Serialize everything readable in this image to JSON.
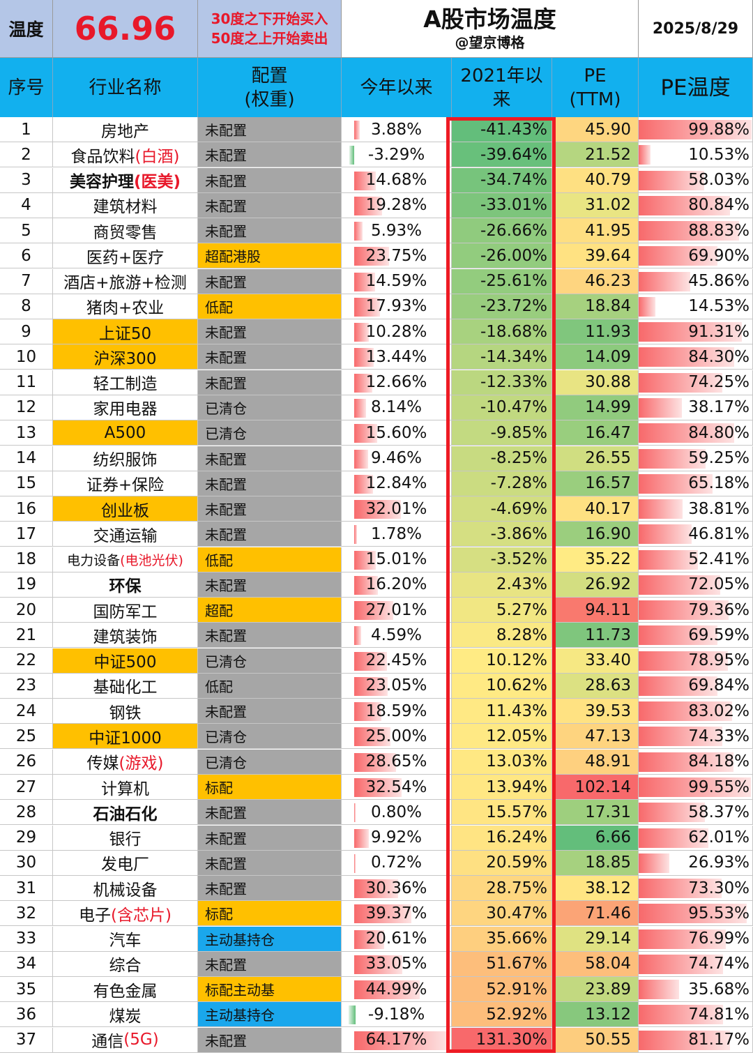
{
  "header": {
    "temp_label": "温度",
    "temp_value": "66.96",
    "rule_buy": "30度之下开始买入",
    "rule_sell": "50度之上开始卖出",
    "title": "A股市场温度",
    "subtitle": "@望京博格",
    "date": "2025/8/29"
  },
  "columns": {
    "seq": "序号",
    "name": "行业名称",
    "config_1": "配置",
    "config_2": "(权重)",
    "ytd": "今年以来",
    "since_2021_1": "2021年以",
    "since_2021_2": "来",
    "pe_1": "PE",
    "pe_2": "(TTM)",
    "pe_temp": "PE温度"
  },
  "colors": {
    "highlight": "#ffc000",
    "header_blue": "#12b0ee",
    "config_gray": "#a6a6a6",
    "config_blue": "#1aa7ec",
    "accent_red": "#e8182a",
    "box_red": "#ee1b24"
  },
  "rows": [
    {
      "seq": "1",
      "name": "房地产",
      "note": "",
      "cfg": "未配置",
      "cfg_type": "gray",
      "ytd": "3.88%",
      "ytd_v": 3.88,
      "since": "-41.43%",
      "since_v": -41.43,
      "pe": "45.90",
      "pe_v": 45.9,
      "pet": "99.88%",
      "pet_v": 99.88
    },
    {
      "seq": "2",
      "name": "食品饮料",
      "note": "(白酒)",
      "cfg": "未配置",
      "cfg_type": "gray",
      "ytd": "-3.29%",
      "ytd_v": -3.29,
      "since": "-39.64%",
      "since_v": -39.64,
      "pe": "21.52",
      "pe_v": 21.52,
      "pet": "10.53%",
      "pet_v": 10.53
    },
    {
      "seq": "3",
      "name": "美容护理",
      "note": "(医美)",
      "style": "bold",
      "cfg": "未配置",
      "cfg_type": "gray",
      "ytd": "14.68%",
      "ytd_v": 14.68,
      "since": "-34.74%",
      "since_v": -34.74,
      "pe": "40.79",
      "pe_v": 40.79,
      "pet": "58.03%",
      "pet_v": 58.03
    },
    {
      "seq": "4",
      "name": "建筑材料",
      "note": "",
      "cfg": "未配置",
      "cfg_type": "gray",
      "ytd": "19.28%",
      "ytd_v": 19.28,
      "since": "-33.01%",
      "since_v": -33.01,
      "pe": "31.02",
      "pe_v": 31.02,
      "pet": "80.84%",
      "pet_v": 80.84
    },
    {
      "seq": "5",
      "name": "商贸零售",
      "note": "",
      "cfg": "未配置",
      "cfg_type": "gray",
      "ytd": "5.93%",
      "ytd_v": 5.93,
      "since": "-26.66%",
      "since_v": -26.66,
      "pe": "41.95",
      "pe_v": 41.95,
      "pet": "88.83%",
      "pet_v": 88.83
    },
    {
      "seq": "6",
      "name": "医药+医疗",
      "note": "",
      "cfg": "超配港股",
      "cfg_type": "gold",
      "ytd": "23.75%",
      "ytd_v": 23.75,
      "since": "-26.00%",
      "since_v": -26.0,
      "pe": "39.64",
      "pe_v": 39.64,
      "pet": "69.90%",
      "pet_v": 69.9
    },
    {
      "seq": "7",
      "name": "酒店+旅游+检测",
      "note": "",
      "cfg": "未配置",
      "cfg_type": "gray",
      "ytd": "14.59%",
      "ytd_v": 14.59,
      "since": "-25.61%",
      "since_v": -25.61,
      "pe": "46.23",
      "pe_v": 46.23,
      "pet": "45.86%",
      "pet_v": 45.86
    },
    {
      "seq": "8",
      "name": "猪肉+农业",
      "note": "",
      "cfg": "低配",
      "cfg_type": "gold",
      "ytd": "17.93%",
      "ytd_v": 17.93,
      "since": "-23.72%",
      "since_v": -23.72,
      "pe": "18.84",
      "pe_v": 18.84,
      "pet": "14.53%",
      "pet_v": 14.53
    },
    {
      "seq": "9",
      "name": "上证50",
      "note": "",
      "style": "hl",
      "cfg": "未配置",
      "cfg_type": "gray",
      "ytd": "10.28%",
      "ytd_v": 10.28,
      "since": "-18.68%",
      "since_v": -18.68,
      "pe": "11.93",
      "pe_v": 11.93,
      "pet": "91.31%",
      "pet_v": 91.31
    },
    {
      "seq": "10",
      "name": "沪深300",
      "note": "",
      "style": "hl",
      "cfg": "未配置",
      "cfg_type": "gray",
      "ytd": "13.44%",
      "ytd_v": 13.44,
      "since": "-14.34%",
      "since_v": -14.34,
      "pe": "14.09",
      "pe_v": 14.09,
      "pet": "84.30%",
      "pet_v": 84.3
    },
    {
      "seq": "11",
      "name": "轻工制造",
      "note": "",
      "cfg": "未配置",
      "cfg_type": "gray",
      "ytd": "12.66%",
      "ytd_v": 12.66,
      "since": "-12.33%",
      "since_v": -12.33,
      "pe": "30.88",
      "pe_v": 30.88,
      "pet": "74.25%",
      "pet_v": 74.25
    },
    {
      "seq": "12",
      "name": "家用电器",
      "note": "",
      "cfg": "已清仓",
      "cfg_type": "gray",
      "ytd": "8.14%",
      "ytd_v": 8.14,
      "since": "-10.47%",
      "since_v": -10.47,
      "pe": "14.99",
      "pe_v": 14.99,
      "pet": "38.17%",
      "pet_v": 38.17
    },
    {
      "seq": "13",
      "name": "A500",
      "note": "",
      "style": "hl",
      "cfg": "已清仓",
      "cfg_type": "gray",
      "ytd": "15.60%",
      "ytd_v": 15.6,
      "since": "-9.85%",
      "since_v": -9.85,
      "pe": "16.47",
      "pe_v": 16.47,
      "pet": "84.80%",
      "pet_v": 84.8
    },
    {
      "seq": "14",
      "name": "纺织服饰",
      "note": "",
      "cfg": "未配置",
      "cfg_type": "gray",
      "ytd": "9.46%",
      "ytd_v": 9.46,
      "since": "-8.25%",
      "since_v": -8.25,
      "pe": "26.55",
      "pe_v": 26.55,
      "pet": "59.25%",
      "pet_v": 59.25
    },
    {
      "seq": "15",
      "name": "证券+保险",
      "note": "",
      "cfg": "未配置",
      "cfg_type": "gray",
      "ytd": "12.84%",
      "ytd_v": 12.84,
      "since": "-7.28%",
      "since_v": -7.28,
      "pe": "16.57",
      "pe_v": 16.57,
      "pet": "65.18%",
      "pet_v": 65.18
    },
    {
      "seq": "16",
      "name": "创业板",
      "note": "",
      "style": "hl",
      "cfg": "未配置",
      "cfg_type": "gray",
      "ytd": "32.01%",
      "ytd_v": 32.01,
      "since": "-4.69%",
      "since_v": -4.69,
      "pe": "40.17",
      "pe_v": 40.17,
      "pet": "38.81%",
      "pet_v": 38.81
    },
    {
      "seq": "17",
      "name": "交通运输",
      "note": "",
      "cfg": "未配置",
      "cfg_type": "gray",
      "ytd": "1.78%",
      "ytd_v": 1.78,
      "since": "-3.86%",
      "since_v": -3.86,
      "pe": "16.90",
      "pe_v": 16.9,
      "pet": "46.81%",
      "pet_v": 46.81
    },
    {
      "seq": "18",
      "name": "电力设备",
      "note": "(电池光伏)",
      "style": "small",
      "cfg": "低配",
      "cfg_type": "gold",
      "ytd": "15.01%",
      "ytd_v": 15.01,
      "since": "-3.52%",
      "since_v": -3.52,
      "pe": "35.22",
      "pe_v": 35.22,
      "pet": "52.41%",
      "pet_v": 52.41
    },
    {
      "seq": "19",
      "name": "环保",
      "note": "",
      "style": "bold",
      "cfg": "未配置",
      "cfg_type": "gray",
      "ytd": "16.20%",
      "ytd_v": 16.2,
      "since": "2.43%",
      "since_v": 2.43,
      "pe": "26.92",
      "pe_v": 26.92,
      "pet": "72.05%",
      "pet_v": 72.05
    },
    {
      "seq": "20",
      "name": "国防军工",
      "note": "",
      "cfg": "超配",
      "cfg_type": "gold",
      "ytd": "27.01%",
      "ytd_v": 27.01,
      "since": "5.27%",
      "since_v": 5.27,
      "pe": "94.11",
      "pe_v": 94.11,
      "pet": "79.36%",
      "pet_v": 79.36
    },
    {
      "seq": "21",
      "name": "建筑装饰",
      "note": "",
      "cfg": "未配置",
      "cfg_type": "gray",
      "ytd": "4.59%",
      "ytd_v": 4.59,
      "since": "8.28%",
      "since_v": 8.28,
      "pe": "11.73",
      "pe_v": 11.73,
      "pet": "69.59%",
      "pet_v": 69.59
    },
    {
      "seq": "22",
      "name": "中证500",
      "note": "",
      "style": "hl",
      "cfg": "已清仓",
      "cfg_type": "gray",
      "ytd": "22.45%",
      "ytd_v": 22.45,
      "since": "10.12%",
      "since_v": 10.12,
      "pe": "33.40",
      "pe_v": 33.4,
      "pet": "78.95%",
      "pet_v": 78.95
    },
    {
      "seq": "23",
      "name": "基础化工",
      "note": "",
      "cfg": "低配",
      "cfg_type": "gray",
      "ytd": "23.05%",
      "ytd_v": 23.05,
      "since": "10.62%",
      "since_v": 10.62,
      "pe": "28.63",
      "pe_v": 28.63,
      "pet": "69.84%",
      "pet_v": 69.84
    },
    {
      "seq": "24",
      "name": "钢铁",
      "note": "",
      "cfg": "未配置",
      "cfg_type": "gray",
      "ytd": "18.59%",
      "ytd_v": 18.59,
      "since": "11.43%",
      "since_v": 11.43,
      "pe": "39.53",
      "pe_v": 39.53,
      "pet": "83.02%",
      "pet_v": 83.02
    },
    {
      "seq": "25",
      "name": "中证1000",
      "note": "",
      "style": "hl",
      "cfg": "已清仓",
      "cfg_type": "gray",
      "ytd": "25.00%",
      "ytd_v": 25.0,
      "since": "12.05%",
      "since_v": 12.05,
      "pe": "47.13",
      "pe_v": 47.13,
      "pet": "74.33%",
      "pet_v": 74.33
    },
    {
      "seq": "26",
      "name": "传媒",
      "note": "(游戏)",
      "cfg": "已清仓",
      "cfg_type": "gray",
      "ytd": "28.65%",
      "ytd_v": 28.65,
      "since": "13.03%",
      "since_v": 13.03,
      "pe": "48.91",
      "pe_v": 48.91,
      "pet": "84.18%",
      "pet_v": 84.18
    },
    {
      "seq": "27",
      "name": "计算机",
      "note": "",
      "cfg": "标配",
      "cfg_type": "gold",
      "ytd": "32.54%",
      "ytd_v": 32.54,
      "since": "13.94%",
      "since_v": 13.94,
      "pe": "102.14",
      "pe_v": 102.14,
      "pet": "99.55%",
      "pet_v": 99.55
    },
    {
      "seq": "28",
      "name": "石油石化",
      "note": "",
      "style": "bold",
      "cfg": "未配置",
      "cfg_type": "gray",
      "ytd": "0.80%",
      "ytd_v": 0.8,
      "since": "15.57%",
      "since_v": 15.57,
      "pe": "17.31",
      "pe_v": 17.31,
      "pet": "58.37%",
      "pet_v": 58.37
    },
    {
      "seq": "29",
      "name": "银行",
      "note": "",
      "cfg": "未配置",
      "cfg_type": "gray",
      "ytd": "9.92%",
      "ytd_v": 9.92,
      "since": "16.24%",
      "since_v": 16.24,
      "pe": "6.66",
      "pe_v": 6.66,
      "pet": "62.01%",
      "pet_v": 62.01
    },
    {
      "seq": "30",
      "name": "发电厂",
      "note": "",
      "cfg": "未配置",
      "cfg_type": "gray",
      "ytd": "0.72%",
      "ytd_v": 0.72,
      "since": "20.59%",
      "since_v": 20.59,
      "pe": "18.85",
      "pe_v": 18.85,
      "pet": "26.93%",
      "pet_v": 26.93
    },
    {
      "seq": "31",
      "name": "机械设备",
      "note": "",
      "cfg": "未配置",
      "cfg_type": "gray",
      "ytd": "30.36%",
      "ytd_v": 30.36,
      "since": "28.75%",
      "since_v": 28.75,
      "pe": "38.12",
      "pe_v": 38.12,
      "pet": "73.30%",
      "pet_v": 73.3
    },
    {
      "seq": "32",
      "name": "电子",
      "note": "(含芯片)",
      "cfg": "标配",
      "cfg_type": "gold",
      "ytd": "39.37%",
      "ytd_v": 39.37,
      "since": "30.47%",
      "since_v": 30.47,
      "pe": "71.46",
      "pe_v": 71.46,
      "pet": "95.53%",
      "pet_v": 95.53
    },
    {
      "seq": "33",
      "name": "汽车",
      "note": "",
      "cfg": "主动基持仓",
      "cfg_type": "blue",
      "ytd": "20.61%",
      "ytd_v": 20.61,
      "since": "35.66%",
      "since_v": 35.66,
      "pe": "29.14",
      "pe_v": 29.14,
      "pet": "76.99%",
      "pet_v": 76.99
    },
    {
      "seq": "34",
      "name": "综合",
      "note": "",
      "cfg": "未配置",
      "cfg_type": "gray",
      "ytd": "33.05%",
      "ytd_v": 33.05,
      "since": "51.67%",
      "since_v": 51.67,
      "pe": "58.04",
      "pe_v": 58.04,
      "pet": "74.74%",
      "pet_v": 74.74
    },
    {
      "seq": "35",
      "name": "有色金属",
      "note": "",
      "cfg": "标配主动基",
      "cfg_type": "gold",
      "ytd": "44.99%",
      "ytd_v": 44.99,
      "since": "52.91%",
      "since_v": 52.91,
      "pe": "23.89",
      "pe_v": 23.89,
      "pet": "35.68%",
      "pet_v": 35.68
    },
    {
      "seq": "36",
      "name": "煤炭",
      "note": "",
      "cfg": "主动基持仓",
      "cfg_type": "blue",
      "ytd": "-9.18%",
      "ytd_v": -9.18,
      "since": "52.92%",
      "since_v": 52.92,
      "pe": "13.12",
      "pe_v": 13.12,
      "pet": "74.81%",
      "pet_v": 74.81
    },
    {
      "seq": "37",
      "name": "通信",
      "note": "(5G)",
      "cfg": "未配置",
      "cfg_type": "gray",
      "ytd": "64.17%",
      "ytd_v": 64.17,
      "since": "131.30%",
      "since_v": 131.3,
      "pe": "50.55",
      "pe_v": 50.55,
      "pet": "81.17%",
      "pet_v": 81.17
    }
  ]
}
